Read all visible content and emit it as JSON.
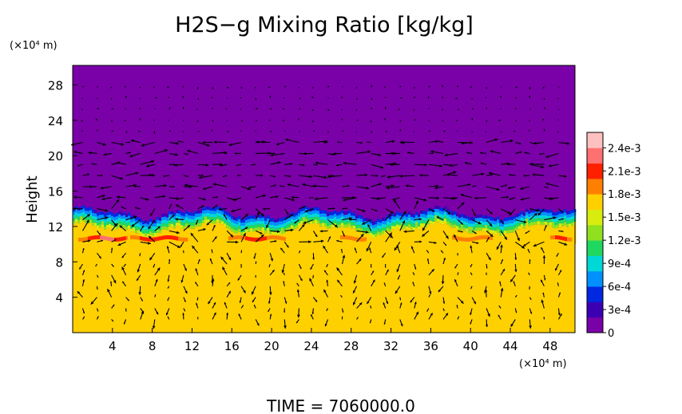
{
  "chart_data": {
    "type": "heatmap",
    "title": "H2S−g Mixing Ratio [kg/kg]",
    "ylabel": "Height",
    "x_unit_label": "(×10⁴ m)",
    "y_unit_label": "(×10⁴ m)",
    "x_ticks": [
      4,
      8,
      12,
      16,
      20,
      24,
      28,
      32,
      36,
      40,
      44,
      48
    ],
    "y_ticks": [
      4,
      8,
      12,
      16,
      20,
      24,
      28
    ],
    "xlim": [
      0,
      50.5
    ],
    "ylim": [
      0,
      30.2
    ],
    "colorbar": {
      "labels": [
        "0",
        "3e-4",
        "6e-4",
        "9e-4",
        "1.2e-3",
        "1.5e-3",
        "1.8e-3",
        "2.1e-3",
        "2.4e-3"
      ],
      "values": [
        0,
        0.0003,
        0.0006,
        0.0009,
        0.0012,
        0.0015,
        0.0018,
        0.0021,
        0.0024
      ],
      "max": 0.0026,
      "colors": [
        "#7a00a8",
        "#3c00b4",
        "#0028e0",
        "#0090ff",
        "#00d8d8",
        "#20d860",
        "#90e020",
        "#d8ec10",
        "#ffd000",
        "#ff8000",
        "#ff2000",
        "#ff7070",
        "#ffc0c0"
      ]
    },
    "field": {
      "upper_layer_value": 0.0,
      "lower_layer_value": 0.00165,
      "interface_height": 11.2,
      "transition_band": [
        10.2,
        14.2
      ],
      "high_concentration_band_height": 10.6,
      "high_concentration_value": 0.0021
    },
    "vectors": "wind velocity arrows on a regular grid over the domain"
  },
  "footer": {
    "time_text": "TIME  =  7060000.0"
  }
}
